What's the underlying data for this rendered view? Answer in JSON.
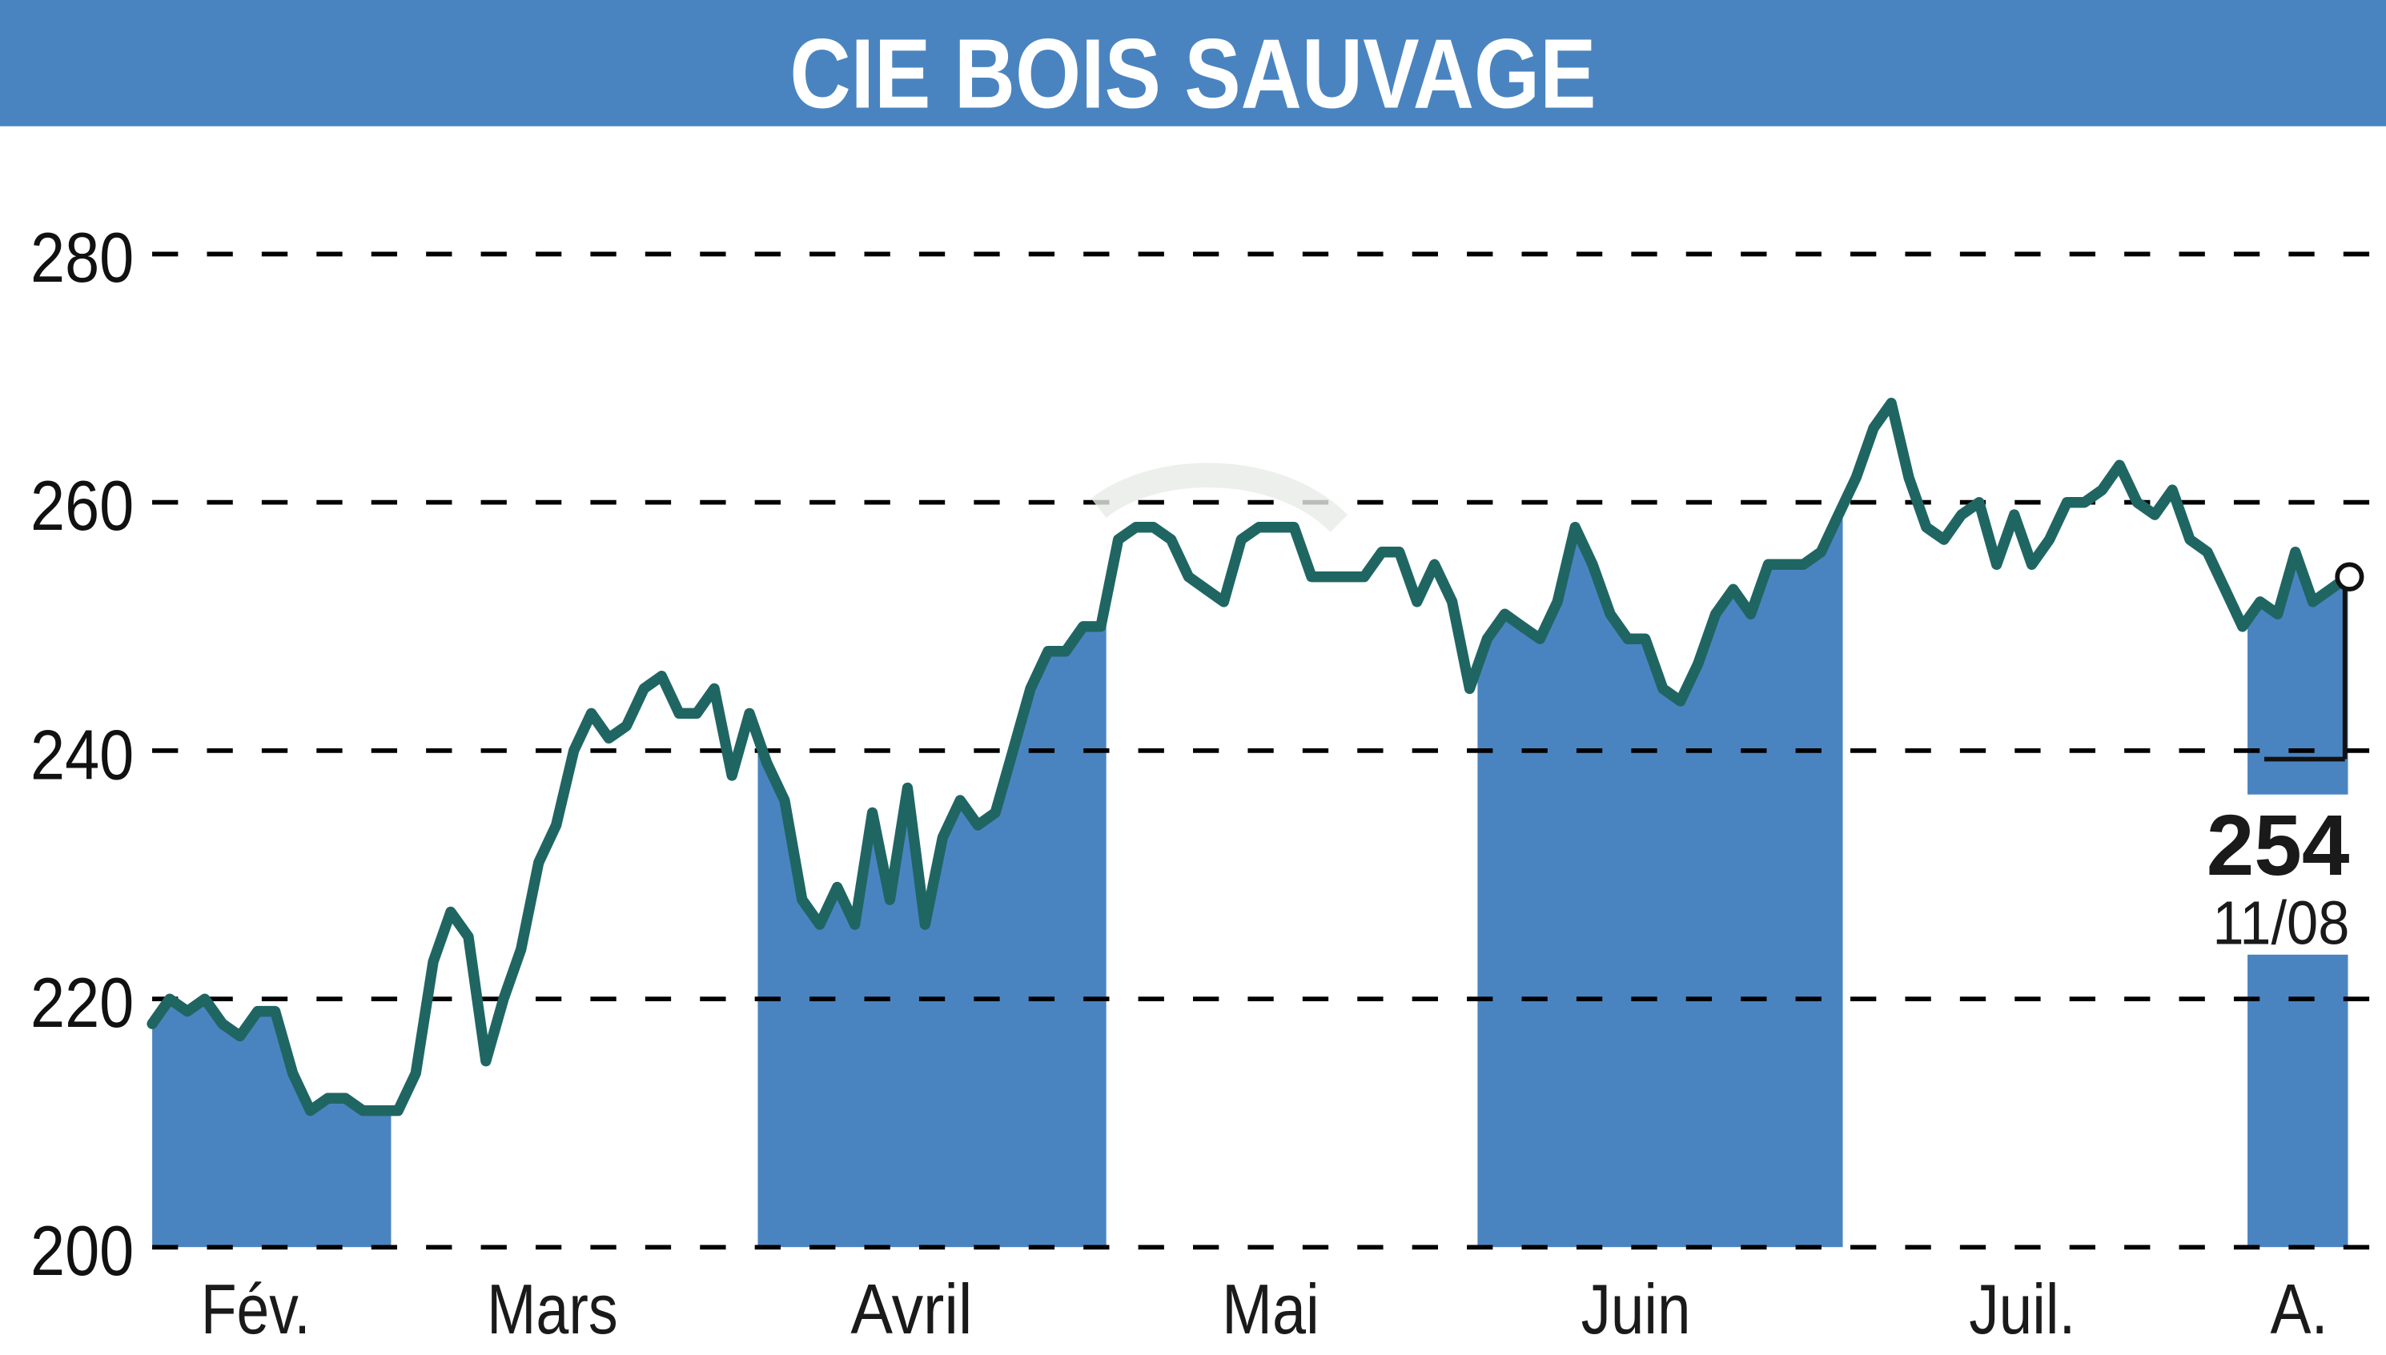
{
  "header": {
    "title": "CIE BOIS SAUVAGE"
  },
  "colors": {
    "banner": "#4a84c0",
    "band": "#4a84c0",
    "line": "#1f6663",
    "grid": "#000000",
    "text": "#111111"
  },
  "annotation": {
    "last_value": "254",
    "last_date": "11/08"
  },
  "chart_data": {
    "type": "line",
    "title": "CIE BOIS SAUVAGE",
    "xlabel": "",
    "ylabel": "",
    "ylim": [
      200,
      280
    ],
    "yticks": [
      200,
      220,
      240,
      260,
      280
    ],
    "ytick_labels": [
      "200",
      "220",
      "240",
      "260",
      "280"
    ],
    "grid": "horizontal dashed",
    "month_labels": [
      "Fév.",
      "Mars",
      "Avril",
      "Mai",
      "Juin",
      "Juil.",
      "A."
    ],
    "shaded_months": [
      "Fév.",
      "Avril",
      "Juin",
      "A."
    ],
    "last_point": {
      "date": "11/08",
      "value": 254
    },
    "series": [
      {
        "name": "CIE BOIS SAUVAGE",
        "values": [
          218,
          220,
          219,
          220,
          218,
          217,
          219,
          219,
          214,
          211,
          212,
          212,
          211,
          211,
          211,
          214,
          223,
          227,
          225,
          215,
          220,
          224,
          231,
          234,
          240,
          243,
          241,
          242,
          245,
          246,
          243,
          243,
          245,
          238,
          243,
          239,
          236,
          228,
          226,
          229,
          226,
          235,
          228,
          237,
          226,
          233,
          236,
          234,
          235,
          240,
          245,
          248,
          248,
          250,
          250,
          257,
          258,
          258,
          257,
          254,
          253,
          252,
          257,
          258,
          258,
          258,
          254,
          254,
          254,
          254,
          256,
          256,
          252,
          255,
          252,
          245,
          249,
          251,
          250,
          249,
          252,
          258,
          255,
          251,
          249,
          249,
          245,
          244,
          247,
          251,
          253,
          251,
          255,
          255,
          255,
          256,
          259,
          262,
          266,
          268,
          262,
          258,
          257,
          259,
          260,
          255,
          259,
          255,
          257,
          260,
          260,
          261,
          263,
          260,
          259,
          261,
          257,
          256,
          253,
          250,
          252,
          251,
          256,
          252,
          253,
          254
        ]
      }
    ]
  }
}
